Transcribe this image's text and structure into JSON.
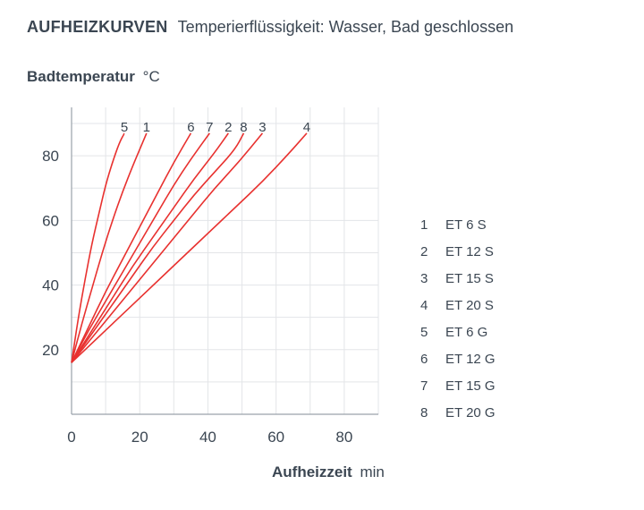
{
  "chart_data": {
    "type": "line",
    "title": "AUFHEIZKURVEN",
    "subtitle": "Temperierflüssigkeit: Wasser, Bad geschlossen",
    "ylabel": "Badtemperatur",
    "yunit": "°C",
    "xlabel": "Aufheizzeit",
    "xunit": "min",
    "xlim": [
      0,
      90
    ],
    "ylim": [
      0,
      95
    ],
    "xticks": [
      0,
      20,
      40,
      60,
      80
    ],
    "yticks": [
      20,
      40,
      60,
      80
    ],
    "grid": true,
    "line_color": "#e8312f",
    "series": [
      {
        "name": "5",
        "points": [
          [
            0,
            16
          ],
          [
            2,
            30
          ],
          [
            4,
            42
          ],
          [
            6,
            53
          ],
          [
            8,
            62
          ],
          [
            10,
            71
          ],
          [
            12,
            78
          ],
          [
            14,
            84
          ],
          [
            15.5,
            87
          ]
        ]
      },
      {
        "name": "1",
        "points": [
          [
            0,
            16
          ],
          [
            3,
            28
          ],
          [
            6,
            39
          ],
          [
            9,
            50
          ],
          [
            12,
            60
          ],
          [
            15,
            69
          ],
          [
            18,
            77
          ],
          [
            20,
            82
          ],
          [
            22,
            87
          ]
        ]
      },
      {
        "name": "6",
        "points": [
          [
            0,
            16
          ],
          [
            5,
            27
          ],
          [
            10,
            38
          ],
          [
            15,
            48
          ],
          [
            20,
            58
          ],
          [
            25,
            68
          ],
          [
            30,
            78
          ],
          [
            35,
            87
          ]
        ]
      },
      {
        "name": "7",
        "points": [
          [
            0,
            16
          ],
          [
            5,
            26
          ],
          [
            10,
            35
          ],
          [
            15,
            44
          ],
          [
            20,
            53
          ],
          [
            25,
            62
          ],
          [
            30,
            71
          ],
          [
            35,
            79
          ],
          [
            40.5,
            87
          ]
        ]
      },
      {
        "name": "2",
        "points": [
          [
            0,
            16
          ],
          [
            6,
            26
          ],
          [
            12,
            36
          ],
          [
            18,
            46
          ],
          [
            24,
            55
          ],
          [
            30,
            64
          ],
          [
            36,
            73
          ],
          [
            42,
            81
          ],
          [
            46,
            87
          ]
        ]
      },
      {
        "name": "8",
        "points": [
          [
            0,
            16
          ],
          [
            6,
            25
          ],
          [
            12,
            34
          ],
          [
            18,
            43
          ],
          [
            24,
            52
          ],
          [
            30,
            60
          ],
          [
            36,
            68
          ],
          [
            42,
            75
          ],
          [
            48,
            82
          ],
          [
            50.5,
            87
          ]
        ]
      },
      {
        "name": "3",
        "points": [
          [
            0,
            16
          ],
          [
            7,
            25
          ],
          [
            14,
            34
          ],
          [
            21,
            43
          ],
          [
            28,
            52
          ],
          [
            35,
            61
          ],
          [
            42,
            70
          ],
          [
            49,
            78
          ],
          [
            56,
            87
          ]
        ]
      },
      {
        "name": "4",
        "points": [
          [
            0,
            16
          ],
          [
            8,
            24
          ],
          [
            16,
            32
          ],
          [
            24,
            40
          ],
          [
            32,
            48
          ],
          [
            40,
            56
          ],
          [
            48,
            64
          ],
          [
            56,
            72
          ],
          [
            64,
            81
          ],
          [
            69,
            87
          ]
        ]
      }
    ],
    "legend": [
      {
        "num": "1",
        "label": "ET 6 S"
      },
      {
        "num": "2",
        "label": "ET 12 S"
      },
      {
        "num": "3",
        "label": "ET 15 S"
      },
      {
        "num": "4",
        "label": "ET 20 S"
      },
      {
        "num": "5",
        "label": "ET 6 G"
      },
      {
        "num": "6",
        "label": "ET 12 G"
      },
      {
        "num": "7",
        "label": "ET 15 G"
      },
      {
        "num": "8",
        "label": "ET 20 G"
      }
    ]
  }
}
